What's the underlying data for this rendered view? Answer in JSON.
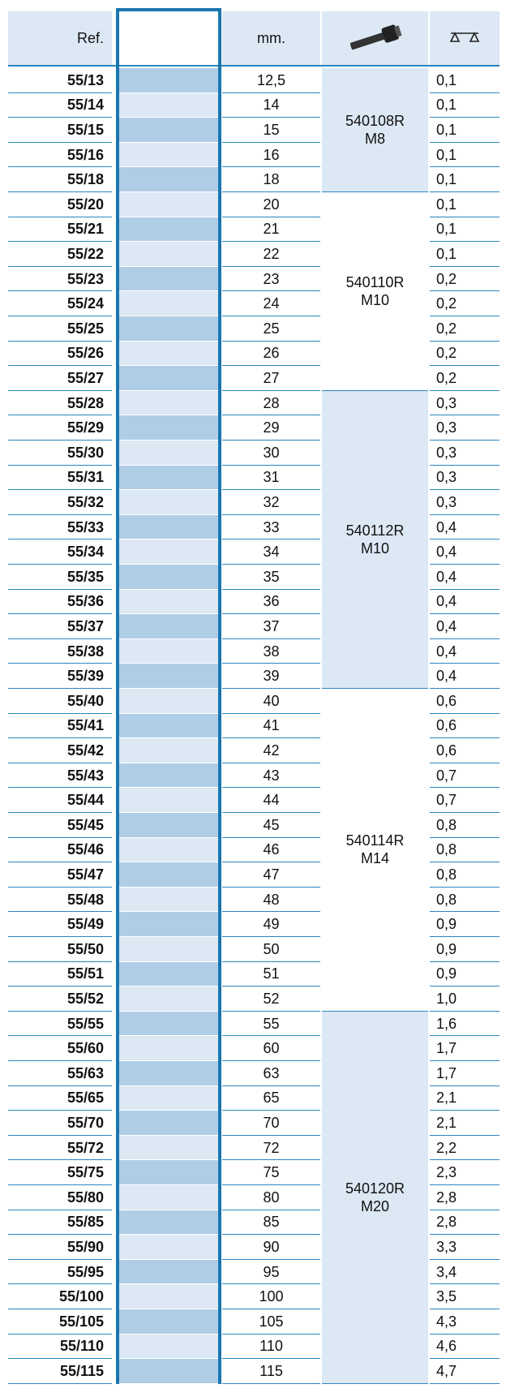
{
  "header": {
    "ref": "Ref.",
    "mm": "mm."
  },
  "groups": [
    {
      "code": "540108R",
      "thread": "M8",
      "rows": [
        [
          "55/13",
          "12,5",
          "0,1"
        ],
        [
          "55/14",
          "14",
          "0,1"
        ],
        [
          "55/15",
          "15",
          "0,1"
        ],
        [
          "55/16",
          "16",
          "0,1"
        ],
        [
          "55/18",
          "18",
          "0,1"
        ]
      ]
    },
    {
      "code": "540110R",
      "thread": "M10",
      "rows": [
        [
          "55/20",
          "20",
          "0,1"
        ],
        [
          "55/21",
          "21",
          "0,1"
        ],
        [
          "55/22",
          "22",
          "0,1"
        ],
        [
          "55/23",
          "23",
          "0,2"
        ],
        [
          "55/24",
          "24",
          "0,2"
        ],
        [
          "55/25",
          "25",
          "0,2"
        ],
        [
          "55/26",
          "26",
          "0,2"
        ],
        [
          "55/27",
          "27",
          "0,2"
        ]
      ]
    },
    {
      "code": "540112R",
      "thread": "M10",
      "rows": [
        [
          "55/28",
          "28",
          "0,3"
        ],
        [
          "55/29",
          "29",
          "0,3"
        ],
        [
          "55/30",
          "30",
          "0,3"
        ],
        [
          "55/31",
          "31",
          "0,3"
        ],
        [
          "55/32",
          "32",
          "0,3"
        ],
        [
          "55/33",
          "33",
          "0,4"
        ],
        [
          "55/34",
          "34",
          "0,4"
        ],
        [
          "55/35",
          "35",
          "0,4"
        ],
        [
          "55/36",
          "36",
          "0,4"
        ],
        [
          "55/37",
          "37",
          "0,4"
        ],
        [
          "55/38",
          "38",
          "0,4"
        ],
        [
          "55/39",
          "39",
          "0,4"
        ]
      ]
    },
    {
      "code": "540114R",
      "thread": "M14",
      "rows": [
        [
          "55/40",
          "40",
          "0,6"
        ],
        [
          "55/41",
          "41",
          "0,6"
        ],
        [
          "55/42",
          "42",
          "0,6"
        ],
        [
          "55/43",
          "43",
          "0,7"
        ],
        [
          "55/44",
          "44",
          "0,7"
        ],
        [
          "55/45",
          "45",
          "0,8"
        ],
        [
          "55/46",
          "46",
          "0,8"
        ],
        [
          "55/47",
          "47",
          "0,8"
        ],
        [
          "55/48",
          "48",
          "0,8"
        ],
        [
          "55/49",
          "49",
          "0,9"
        ],
        [
          "55/50",
          "50",
          "0,9"
        ],
        [
          "55/51",
          "51",
          "0,9"
        ],
        [
          "55/52",
          "52",
          "1,0"
        ]
      ]
    },
    {
      "code": "540120R",
      "thread": "M20",
      "rows": [
        [
          "55/55",
          "55",
          "1,6"
        ],
        [
          "55/60",
          "60",
          "1,7"
        ],
        [
          "55/63",
          "63",
          "1,7"
        ],
        [
          "55/65",
          "65",
          "2,1"
        ],
        [
          "55/70",
          "70",
          "2,1"
        ],
        [
          "55/72",
          "72",
          "2,2"
        ],
        [
          "55/75",
          "75",
          "2,3"
        ],
        [
          "55/80",
          "80",
          "2,8"
        ],
        [
          "55/85",
          "85",
          "2,8"
        ],
        [
          "55/90",
          "90",
          "3,3"
        ],
        [
          "55/95",
          "95",
          "3,4"
        ],
        [
          "55/100",
          "100",
          "3,5"
        ],
        [
          "55/105",
          "105",
          "4,3"
        ],
        [
          "55/110",
          "110",
          "4,6"
        ],
        [
          "55/115",
          "115",
          "4,7"
        ]
      ]
    }
  ]
}
